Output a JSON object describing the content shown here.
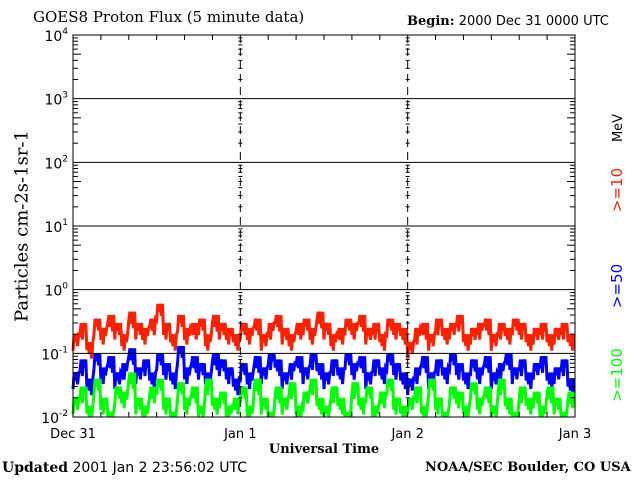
{
  "header": {
    "title": "GOES8 Proton Flux (5 minute data)",
    "begin_label": "Begin:",
    "begin_value": "2000 Dec 31 0000 UTC"
  },
  "footer": {
    "updated_label": "Updated",
    "updated_value": "2001 Jan  2 23:56:02 UTC",
    "source": "NOAA/SEC Boulder, CO USA"
  },
  "chart_data": {
    "type": "line",
    "title": "GOES8 Proton Flux (5 minute data)",
    "xlabel": "Universal Time",
    "ylabel": "Particles cm-2s-1sr-1",
    "y_scale": "log",
    "ylim": [
      0.01,
      10000
    ],
    "y_ticks": [
      {
        "base": "10",
        "exp": "-2"
      },
      {
        "base": "10",
        "exp": "-1"
      },
      {
        "base": "10",
        "exp": "0"
      },
      {
        "base": "10",
        "exp": "1"
      },
      {
        "base": "10",
        "exp": "2"
      },
      {
        "base": "10",
        "exp": "3"
      },
      {
        "base": "10",
        "exp": "4"
      }
    ],
    "x_ticks": [
      "Dec 31",
      "Jan 1",
      "Jan 2",
      "Jan 3"
    ],
    "x_range_hours": [
      0,
      72
    ],
    "grid": true,
    "legend_placement": "right",
    "legend_unit": "MeV",
    "series": [
      {
        "name": ">=10",
        "color": "#ff2000",
        "values": [
          0.2,
          0.3,
          0.15,
          0.35,
          0.25,
          0.4,
          0.3,
          0.2,
          0.45,
          0.3,
          0.25,
          0.35,
          0.6,
          0.3,
          0.2,
          0.4,
          0.25,
          0.3,
          0.35,
          0.2,
          0.4,
          0.3,
          0.25,
          0.2,
          0.3,
          0.25,
          0.35,
          0.2,
          0.3,
          0.4,
          0.25,
          0.2,
          0.3,
          0.35,
          0.25,
          0.45,
          0.3,
          0.2,
          0.25,
          0.35,
          0.3,
          0.4,
          0.25,
          0.3,
          0.2,
          0.35,
          0.3,
          0.25,
          0.15,
          0.25,
          0.3,
          0.2,
          0.35,
          0.25,
          0.3,
          0.4,
          0.2,
          0.25,
          0.3,
          0.35,
          0.2,
          0.3,
          0.25,
          0.35,
          0.3,
          0.2,
          0.25,
          0.3,
          0.2,
          0.25,
          0.3,
          0.2
        ]
      },
      {
        "name": ">=50",
        "color": "#0000ff",
        "values": [
          0.05,
          0.08,
          0.04,
          0.1,
          0.06,
          0.09,
          0.05,
          0.07,
          0.12,
          0.06,
          0.08,
          0.05,
          0.1,
          0.07,
          0.05,
          0.13,
          0.06,
          0.09,
          0.07,
          0.05,
          0.1,
          0.08,
          0.06,
          0.04,
          0.07,
          0.05,
          0.09,
          0.06,
          0.1,
          0.08,
          0.05,
          0.07,
          0.09,
          0.06,
          0.1,
          0.07,
          0.05,
          0.08,
          0.06,
          0.1,
          0.07,
          0.09,
          0.05,
          0.08,
          0.06,
          0.1,
          0.07,
          0.05,
          0.04,
          0.06,
          0.09,
          0.05,
          0.08,
          0.06,
          0.1,
          0.07,
          0.05,
          0.08,
          0.06,
          0.09,
          0.05,
          0.07,
          0.1,
          0.06,
          0.08,
          0.05,
          0.07,
          0.09,
          0.05,
          0.06,
          0.08,
          0.04
        ]
      },
      {
        "name": ">=100",
        "color": "#00ff00",
        "values": [
          0.02,
          0.03,
          0.015,
          0.04,
          0.02,
          0.012,
          0.03,
          0.025,
          0.05,
          0.02,
          0.015,
          0.03,
          0.04,
          0.02,
          0.012,
          0.035,
          0.02,
          0.03,
          0.015,
          0.04,
          0.02,
          0.025,
          0.015,
          0.02,
          0.03,
          0.015,
          0.04,
          0.02,
          0.012,
          0.03,
          0.02,
          0.035,
          0.015,
          0.025,
          0.04,
          0.02,
          0.015,
          0.03,
          0.02,
          0.012,
          0.035,
          0.02,
          0.03,
          0.015,
          0.025,
          0.04,
          0.02,
          0.015,
          0.02,
          0.03,
          0.015,
          0.04,
          0.02,
          0.012,
          0.03,
          0.025,
          0.015,
          0.035,
          0.02,
          0.03,
          0.015,
          0.04,
          0.02,
          0.012,
          0.03,
          0.02,
          0.025,
          0.015,
          0.03,
          0.02,
          0.012,
          0.025
        ]
      }
    ]
  }
}
